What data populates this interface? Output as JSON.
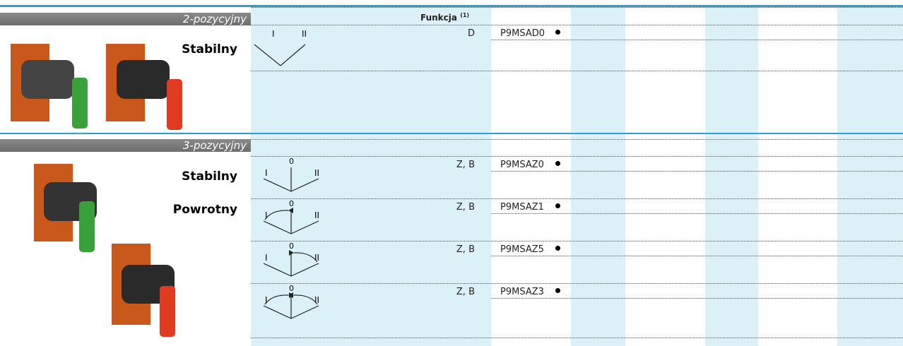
{
  "header": {
    "function": "Funkcja",
    "note": "(1)"
  },
  "sections": [
    {
      "title": "2-pozycyjny",
      "labels": [
        "Stabilny"
      ],
      "rows": [
        {
          "diagram": [
            "I",
            "II"
          ],
          "function": "D",
          "code": "P9MSAD0"
        }
      ]
    },
    {
      "title": "3-pozycyjny",
      "labels": [
        "Stabilny",
        "Powrotny"
      ],
      "rows": [
        {
          "diagram": [
            "0",
            "I",
            "II"
          ],
          "function": "Z, B",
          "code": "P9MSAZ0"
        },
        {
          "diagram": [
            "0",
            "I",
            "II"
          ],
          "function": "Z, B",
          "code": "P9MSAZ1"
        },
        {
          "diagram": [
            "0",
            "I",
            "II"
          ],
          "function": "Z, B",
          "code": "P9MSAZ5"
        },
        {
          "diagram": [
            "0",
            "I",
            "II"
          ],
          "function": "Z, B",
          "code": "P9MSAZ3"
        }
      ]
    }
  ]
}
